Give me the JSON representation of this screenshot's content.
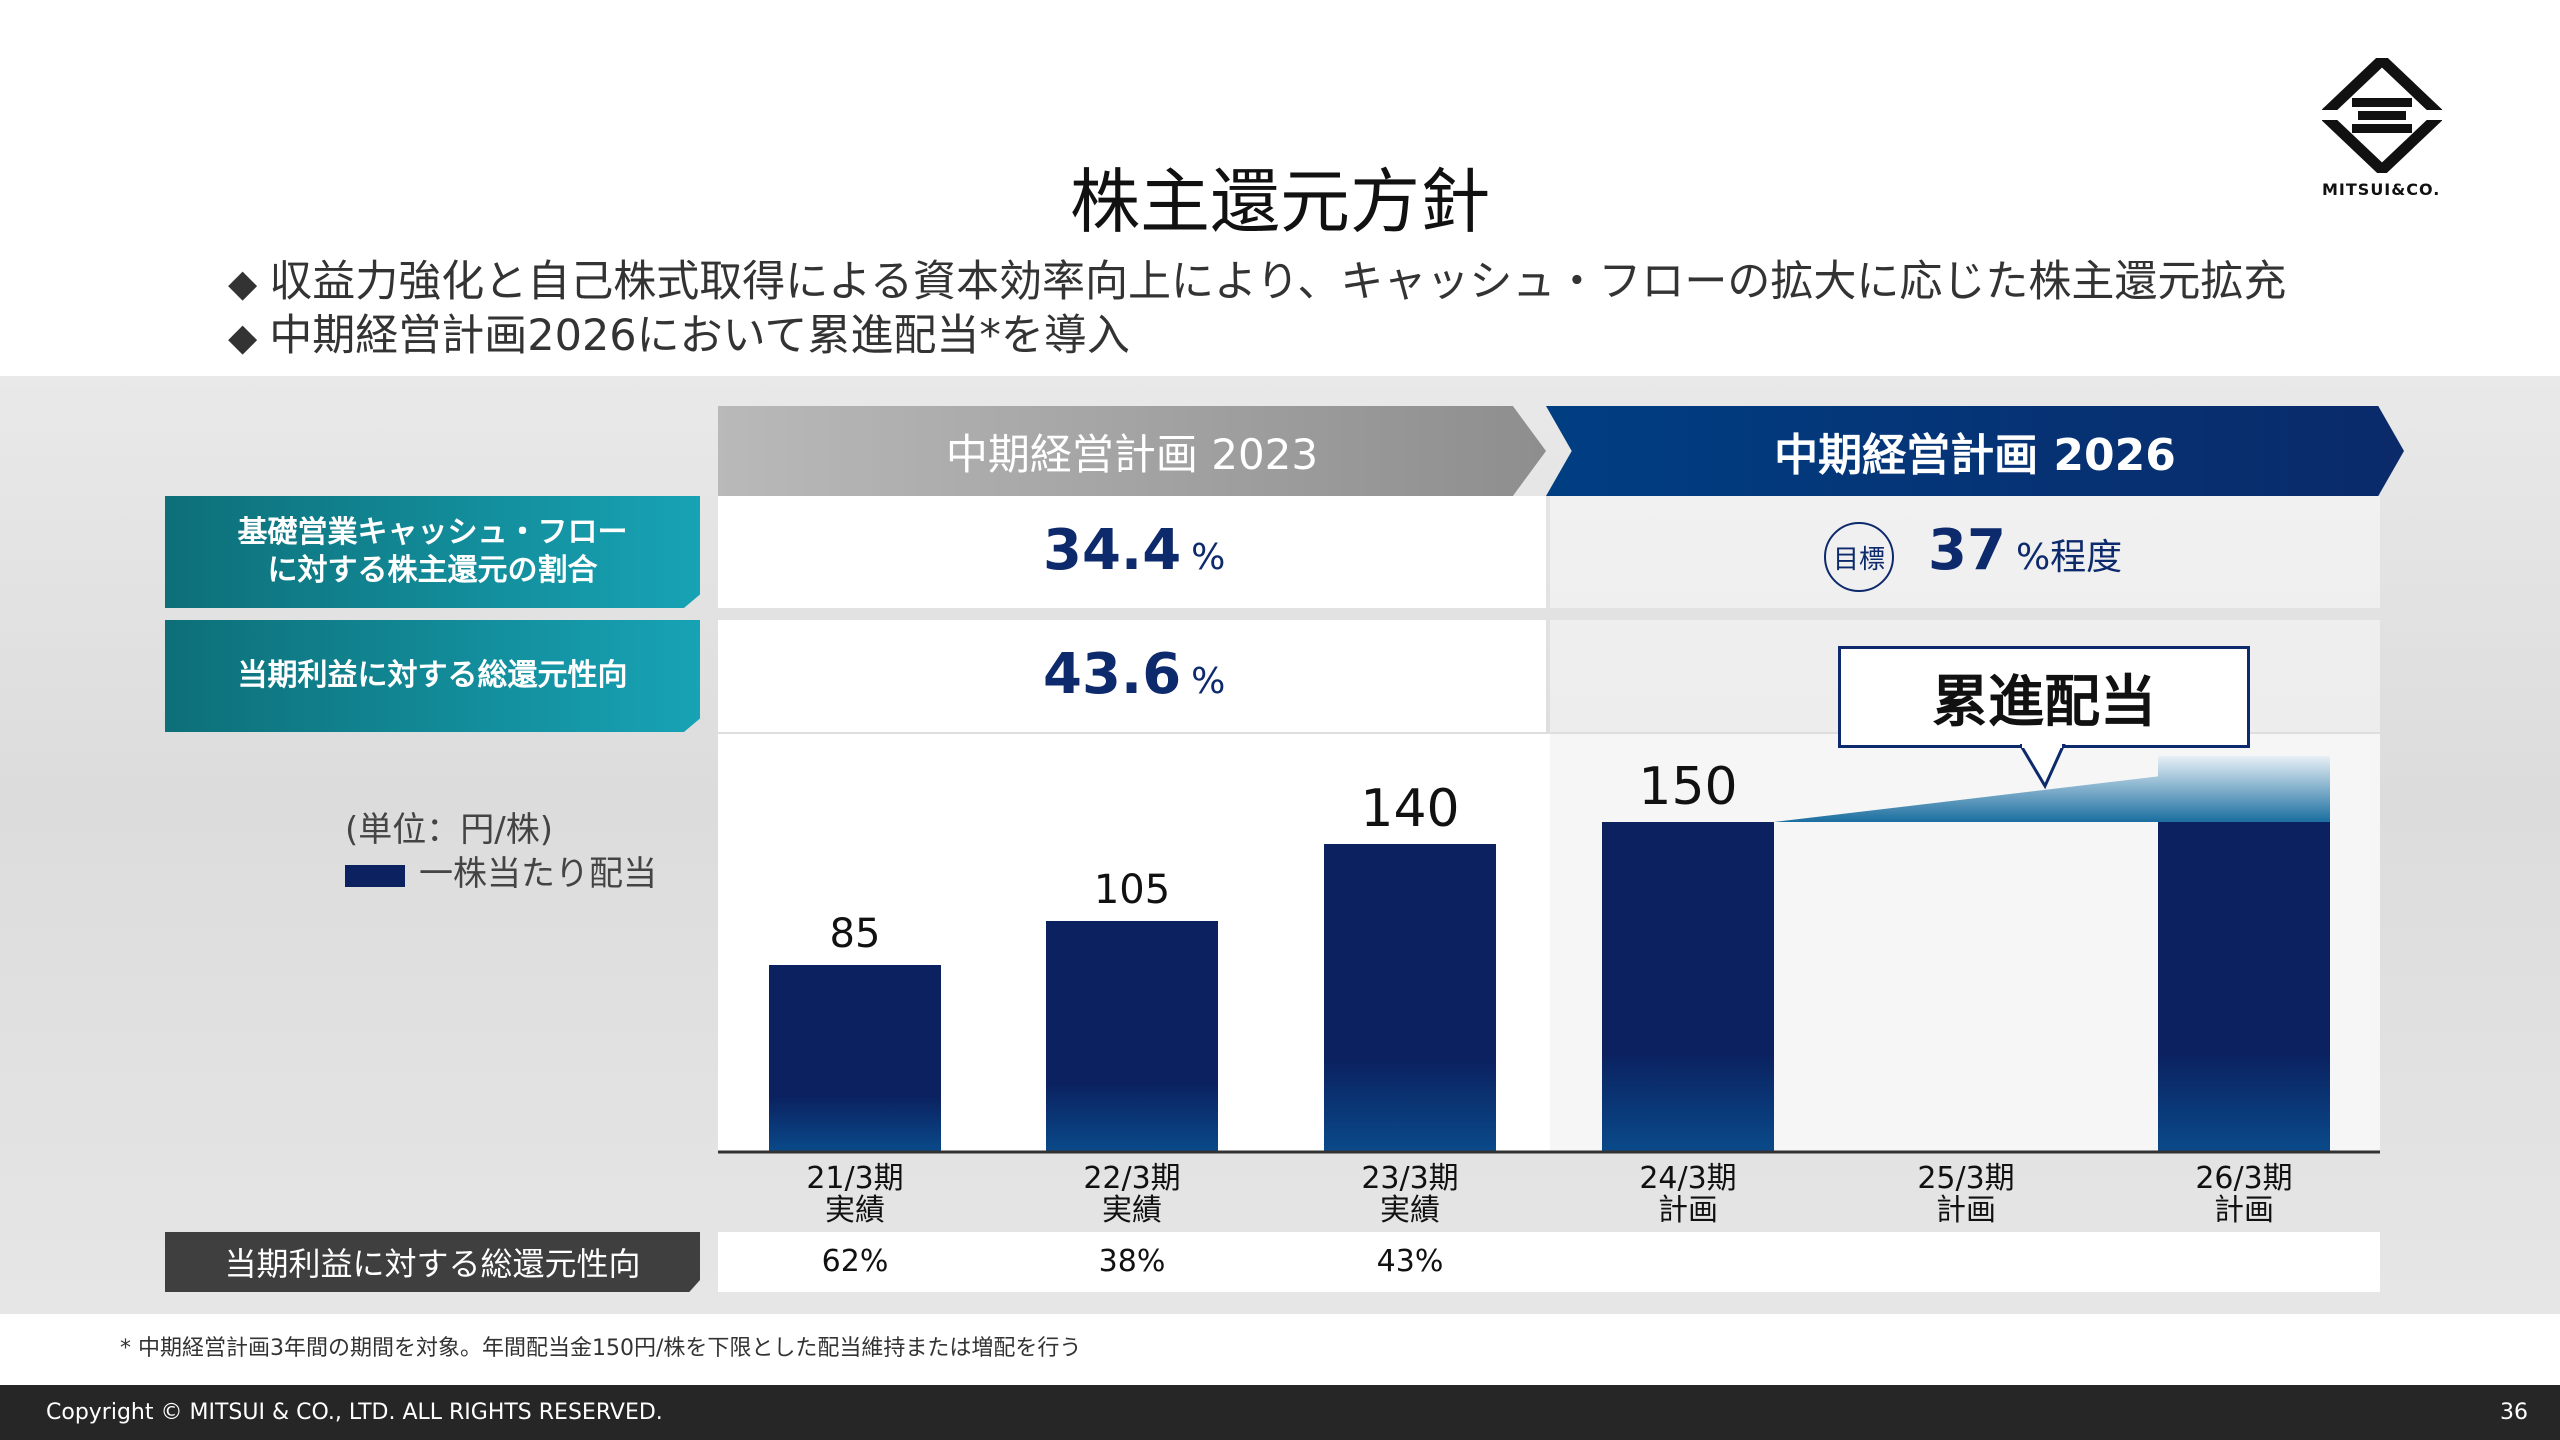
{
  "slide": {
    "title": "株主還元方針",
    "bullets": [
      "収益力強化と自己株式取得による資本効率向上により、キャッシュ・フローの拡大に応じた株主還元拡充",
      "中期経営計画2026において累進配当*を導入"
    ],
    "bullet_marker": "◆",
    "logo_text": "MITSUI&CO."
  },
  "plans": {
    "plan2023": "中期経営計画 2023",
    "plan2026": "中期経営計画 2026"
  },
  "metrics": {
    "row1_label_line1": "基礎営業キャッシュ・フロー",
    "row1_label_line2": "に対する株主還元の割合",
    "row1_value_2023": "34.4",
    "row1_unit_2023": "%",
    "row1_target_badge": "目標",
    "row1_value_2026": "37",
    "row1_unit_2026": "%程度",
    "row2_label": "当期利益に対する総還元性向",
    "row2_value_2023": "43.6",
    "row2_unit_2023": "%"
  },
  "legend": {
    "unit": "(単位：円/株)",
    "series": "一株当たり配当"
  },
  "callout": "累進配当",
  "colors": {
    "navy": "#0b2160",
    "navy_bottom": "#0a4a8a",
    "teal": "#17a3b5"
  },
  "chart_data": {
    "type": "bar",
    "title": "一株当たり配当",
    "ylabel": "円/株",
    "categories": [
      "21/3期 実績",
      "22/3期 実績",
      "23/3期 実績",
      "24/3期 計画",
      "25/3期 計画",
      "26/3期 計画"
    ],
    "cat_line1": [
      "21/3期",
      "22/3期",
      "23/3期",
      "24/3期",
      "25/3期",
      "26/3期"
    ],
    "cat_line2": [
      "実績",
      "実績",
      "実績",
      "計画",
      "計画",
      "計画"
    ],
    "series": [
      {
        "name": "一株当たり配当",
        "values": [
          85,
          105,
          140,
          150,
          null,
          150
        ]
      }
    ],
    "labels": [
      "85",
      "105",
      "140",
      "150",
      "",
      ""
    ],
    "ylim": [
      0,
      160
    ]
  },
  "ratio_row": {
    "label": "当期利益に対する総還元性向",
    "values": [
      "62%",
      "38%",
      "43%",
      "",
      "",
      ""
    ]
  },
  "footnote": "* 中期経営計画3年間の期間を対象。年間配当金150円/株を下限とした配当維持または増配を行う",
  "footer": {
    "copyright": "Copyright © MITSUI & CO., LTD. ALL RIGHTS RESERVED.",
    "page": "36"
  }
}
